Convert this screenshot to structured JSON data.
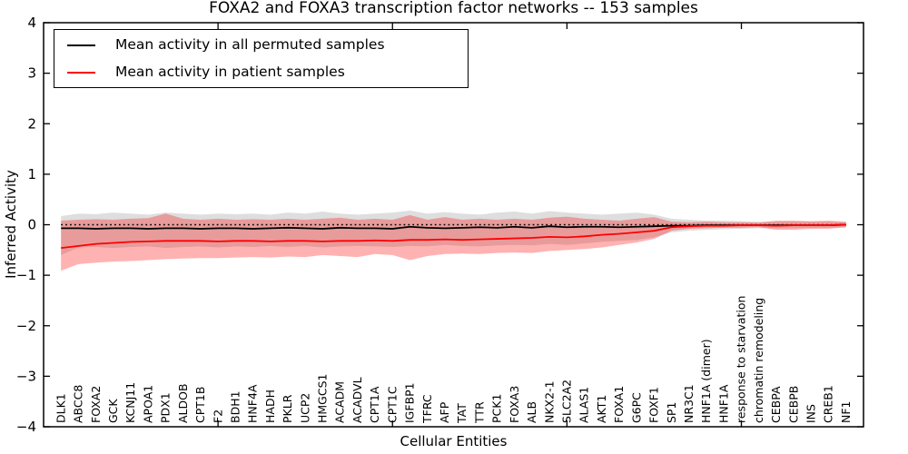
{
  "chart_data": {
    "type": "line",
    "title": "FOXA2 and FOXA3 transcription factor networks -- 153 samples",
    "xlabel": "Cellular Entities",
    "ylabel": "Inferred Activity",
    "ylim": [
      -4,
      4
    ],
    "y_tick_values": [
      4,
      3,
      2,
      1,
      0,
      -1,
      -2,
      -3,
      -4
    ],
    "y_tick_labels": [
      "4",
      "3",
      "2",
      "1",
      "0",
      "−1",
      "−2",
      "−3",
      "−4"
    ],
    "x_range": [
      0,
      47
    ],
    "x_axis_tick_positions": [
      10,
      20,
      30,
      40
    ],
    "grid": false,
    "legend_position": "upper left",
    "reference_line": {
      "y": 0,
      "style": "dotted",
      "color": "#000000"
    },
    "categories": [
      "DLK1",
      "ABCC8",
      "FOXA2",
      "GCK",
      "KCNJ11",
      "APOA1",
      "PDX1",
      "ALDOB",
      "CPT1B",
      "F2",
      "BDH1",
      "HNF4A",
      "HADH",
      "PKLR",
      "UCP2",
      "HMGCS1",
      "ACADM",
      "ACADVL",
      "CPT1A",
      "CPT1C",
      "IGFBP1",
      "TFRC",
      "AFP",
      "TAT",
      "TTR",
      "PCK1",
      "FOXA3",
      "ALB",
      "NKX2-1",
      "SLC2A2",
      "ALAS1",
      "AKT1",
      "FOXA1",
      "G6PC",
      "FOXF1",
      "SP1",
      "NR3C1",
      "HNF1A (dimer)",
      "HNF1A",
      "response to starvation",
      "chromatin remodeling",
      "CEBPA",
      "CEBPB",
      "INS",
      "CREB1",
      "NF1"
    ],
    "series": [
      {
        "name": "Mean activity in all permuted samples",
        "color": "#000000",
        "band_color": "#000000",
        "band_opacity": 0.13,
        "values": [
          -0.07,
          -0.07,
          -0.08,
          -0.07,
          -0.07,
          -0.08,
          -0.07,
          -0.07,
          -0.08,
          -0.07,
          -0.07,
          -0.08,
          -0.07,
          -0.06,
          -0.07,
          -0.08,
          -0.06,
          -0.07,
          -0.07,
          -0.08,
          -0.04,
          -0.06,
          -0.07,
          -0.06,
          -0.05,
          -0.06,
          -0.04,
          -0.06,
          -0.03,
          -0.05,
          -0.04,
          -0.04,
          -0.05,
          -0.04,
          -0.03,
          -0.02,
          -0.02,
          -0.01,
          -0.01,
          -0.01,
          -0.01,
          -0.01,
          -0.01,
          -0.01,
          -0.01,
          0.0
        ],
        "band_upper": [
          0.17,
          0.22,
          0.21,
          0.24,
          0.22,
          0.2,
          0.24,
          0.22,
          0.2,
          0.22,
          0.21,
          0.22,
          0.2,
          0.24,
          0.22,
          0.26,
          0.22,
          0.2,
          0.22,
          0.24,
          0.28,
          0.22,
          0.25,
          0.22,
          0.2,
          0.24,
          0.26,
          0.22,
          0.27,
          0.24,
          0.22,
          0.2,
          0.22,
          0.24,
          0.2,
          0.12,
          0.1,
          0.08,
          0.08,
          0.07,
          0.06,
          0.06,
          0.06,
          0.06,
          0.06,
          0.05
        ],
        "band_lower": [
          -0.6,
          -0.45,
          -0.44,
          -0.46,
          -0.44,
          -0.43,
          -0.46,
          -0.44,
          -0.43,
          -0.45,
          -0.43,
          -0.44,
          -0.42,
          -0.44,
          -0.42,
          -0.45,
          -0.43,
          -0.42,
          -0.43,
          -0.44,
          -0.42,
          -0.43,
          -0.4,
          -0.42,
          -0.43,
          -0.41,
          -0.4,
          -0.41,
          -0.38,
          -0.4,
          -0.37,
          -0.34,
          -0.32,
          -0.3,
          -0.25,
          -0.15,
          -0.12,
          -0.1,
          -0.09,
          -0.08,
          -0.07,
          -0.07,
          -0.07,
          -0.06,
          -0.06,
          -0.05
        ]
      },
      {
        "name": "Mean activity in patient samples",
        "color": "#ff0000",
        "band_color": "#ff0000",
        "band_opacity": 0.3,
        "values": [
          -0.46,
          -0.42,
          -0.38,
          -0.36,
          -0.34,
          -0.33,
          -0.32,
          -0.32,
          -0.32,
          -0.33,
          -0.32,
          -0.32,
          -0.33,
          -0.32,
          -0.32,
          -0.33,
          -0.32,
          -0.32,
          -0.31,
          -0.32,
          -0.3,
          -0.3,
          -0.29,
          -0.3,
          -0.29,
          -0.28,
          -0.27,
          -0.26,
          -0.24,
          -0.25,
          -0.23,
          -0.2,
          -0.18,
          -0.15,
          -0.12,
          -0.05,
          -0.03,
          -0.02,
          -0.02,
          -0.01,
          -0.01,
          -0.02,
          -0.01,
          -0.01,
          -0.01,
          0.0
        ],
        "band_upper": [
          0.08,
          0.1,
          0.11,
          0.1,
          0.12,
          0.13,
          0.22,
          0.12,
          0.1,
          0.12,
          0.1,
          0.11,
          0.1,
          0.12,
          0.1,
          0.12,
          0.14,
          0.1,
          0.12,
          0.1,
          0.19,
          0.1,
          0.15,
          0.1,
          0.12,
          0.1,
          0.12,
          0.1,
          0.14,
          0.16,
          0.12,
          0.1,
          0.08,
          0.12,
          0.15,
          0.06,
          0.05,
          0.06,
          0.05,
          0.05,
          0.04,
          0.08,
          0.08,
          0.07,
          0.08,
          0.06
        ],
        "band_lower": [
          -0.91,
          -0.78,
          -0.75,
          -0.73,
          -0.72,
          -0.7,
          -0.68,
          -0.67,
          -0.66,
          -0.66,
          -0.65,
          -0.64,
          -0.65,
          -0.63,
          -0.64,
          -0.6,
          -0.62,
          -0.64,
          -0.58,
          -0.6,
          -0.7,
          -0.62,
          -0.58,
          -0.57,
          -0.58,
          -0.56,
          -0.55,
          -0.56,
          -0.52,
          -0.5,
          -0.48,
          -0.45,
          -0.4,
          -0.35,
          -0.28,
          -0.12,
          -0.08,
          -0.07,
          -0.06,
          -0.06,
          -0.05,
          -0.1,
          -0.1,
          -0.08,
          -0.08,
          -0.05
        ]
      }
    ]
  }
}
